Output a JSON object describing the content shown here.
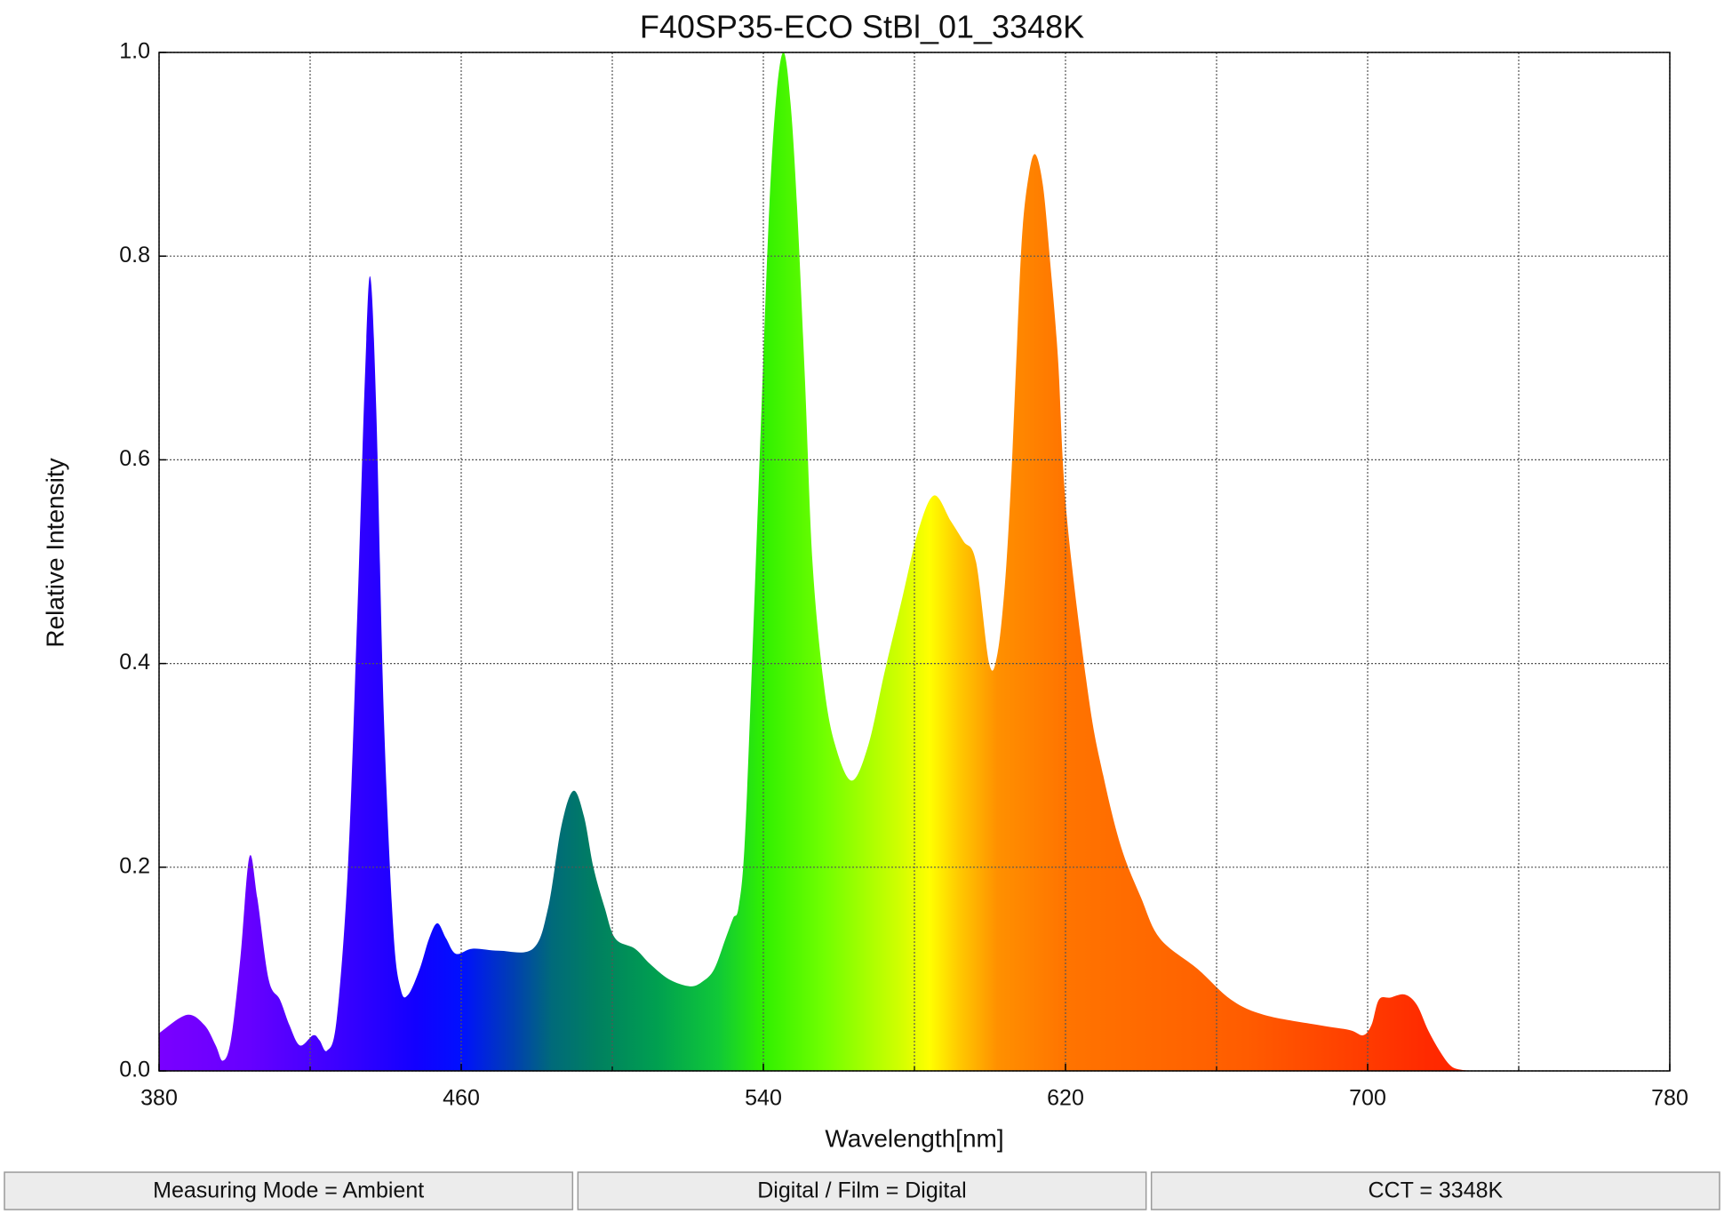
{
  "chart_data": {
    "type": "area",
    "title": "F40SP35-ECO StBl_01_3348K",
    "xlabel": "Wavelength[nm]",
    "ylabel": "Relative Intensity",
    "x": [
      380,
      387.3,
      392,
      395,
      396.9,
      399,
      401.5,
      403.9,
      406,
      409,
      412,
      414.5,
      417.3,
      420.8,
      422.5,
      424.5,
      427,
      430,
      432.5,
      434.5,
      435.9,
      437.5,
      439.5,
      442,
      444,
      446,
      449,
      451.5,
      453.7,
      456,
      458.6,
      463,
      470,
      479,
      483,
      486.5,
      489.7,
      492.5,
      495,
      498,
      500.8,
      506,
      510,
      515,
      520.6,
      524,
      527,
      530,
      532,
      533.4,
      535,
      537,
      539.5,
      541.6,
      543.5,
      545.4,
      547.2,
      548.9,
      551,
      553,
      556,
      559,
      563.4,
      567.8,
      572,
      576.5,
      581,
      585.2,
      589.6,
      593,
      596.3,
      599.8,
      602,
      604,
      605.6,
      607,
      608.5,
      610.3,
      612,
      614,
      615.8,
      618,
      620.2,
      626,
      630,
      634.7,
      640,
      645,
      655,
      663.8,
      672.6,
      687,
      695.3,
      698.8,
      701,
      703,
      706,
      709.8,
      713,
      716,
      719,
      722,
      725,
      730
    ],
    "values": [
      0.037,
      0.055,
      0.045,
      0.025,
      0.01,
      0.03,
      0.11,
      0.21,
      0.17,
      0.09,
      0.07,
      0.045,
      0.025,
      0.035,
      0.03,
      0.02,
      0.05,
      0.2,
      0.45,
      0.68,
      0.78,
      0.65,
      0.35,
      0.14,
      0.08,
      0.075,
      0.1,
      0.13,
      0.145,
      0.13,
      0.115,
      0.12,
      0.118,
      0.12,
      0.16,
      0.24,
      0.275,
      0.25,
      0.2,
      0.16,
      0.13,
      0.12,
      0.105,
      0.09,
      0.083,
      0.088,
      0.1,
      0.13,
      0.15,
      0.16,
      0.22,
      0.4,
      0.65,
      0.85,
      0.96,
      1.0,
      0.95,
      0.85,
      0.68,
      0.5,
      0.38,
      0.32,
      0.285,
      0.32,
      0.39,
      0.46,
      0.53,
      0.565,
      0.54,
      0.52,
      0.5,
      0.4,
      0.41,
      0.48,
      0.58,
      0.7,
      0.82,
      0.88,
      0.9,
      0.87,
      0.8,
      0.7,
      0.55,
      0.37,
      0.29,
      0.22,
      0.17,
      0.13,
      0.1,
      0.07,
      0.055,
      0.045,
      0.04,
      0.035,
      0.045,
      0.07,
      0.072,
      0.075,
      0.065,
      0.04,
      0.02,
      0.005,
      0.001,
      0
    ],
    "xlim": [
      380,
      780
    ],
    "xticks": [
      380,
      460,
      540,
      620,
      700,
      780
    ],
    "xminor_ticks": [
      420,
      500,
      580,
      660,
      740
    ],
    "ylim": [
      0,
      1
    ],
    "yticks": [
      {
        "value": 0,
        "label": "0.0"
      },
      0.2,
      0.4,
      0.6,
      0.8,
      {
        "value": 1,
        "label": "1.0"
      }
    ],
    "grid": true,
    "footer": [
      "Measuring Mode = Ambient",
      "Digital / Film = Digital",
      "CCT = 3348K"
    ]
  }
}
